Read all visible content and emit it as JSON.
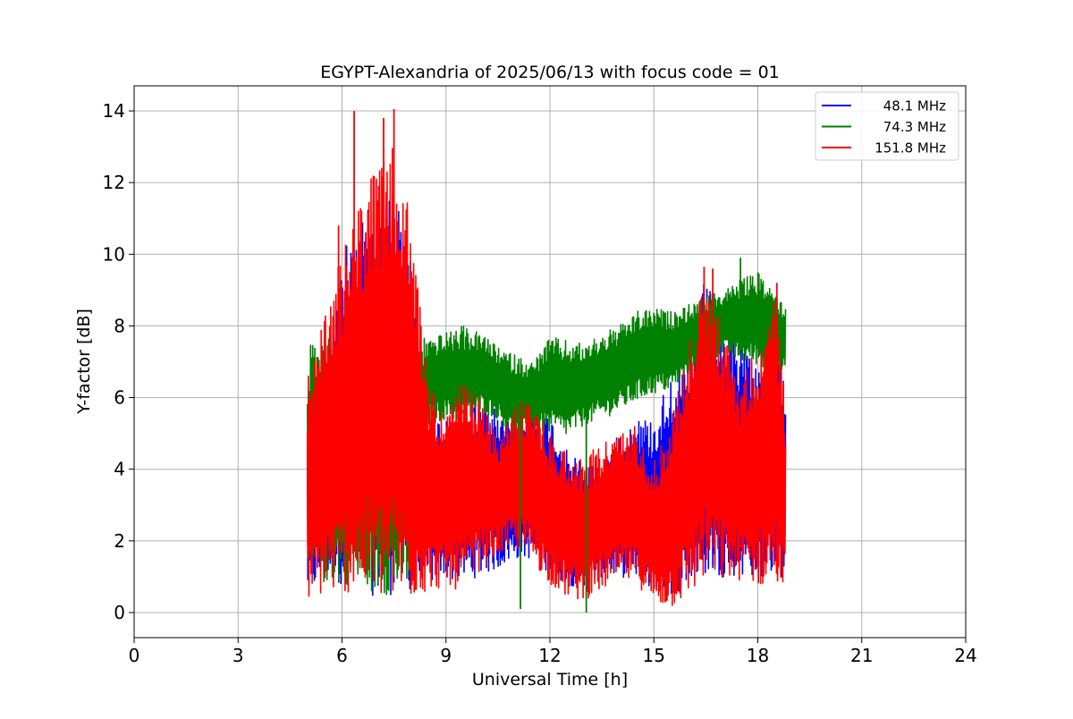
{
  "chart_data": {
    "type": "line",
    "title": "EGYPT-Alexandria of 2025/06/13 with focus code = 01",
    "xlabel": "Universal Time [h]",
    "ylabel": "Y-factor [dB]",
    "xlim": [
      0,
      24
    ],
    "ylim": [
      -0.7,
      14.7
    ],
    "xticks": [
      0,
      3,
      6,
      9,
      12,
      15,
      18,
      21,
      24
    ],
    "yticks": [
      0,
      2,
      4,
      6,
      8,
      10,
      12,
      14
    ],
    "grid": true,
    "legend_position": "top-right",
    "series": [
      {
        "name": "48.1 MHz",
        "color": "#0000ff",
        "x": [
          5.0,
          5.5,
          6.0,
          6.5,
          7.0,
          7.5,
          8.0,
          8.5,
          9.0,
          9.5,
          10.0,
          10.5,
          11.0,
          11.5,
          12.0,
          12.5,
          13.0,
          13.5,
          14.0,
          14.5,
          15.0,
          15.5,
          16.0,
          16.5,
          17.0,
          17.5,
          18.0,
          18.5,
          18.8
        ],
        "high": [
          5.8,
          7.5,
          10.0,
          11.0,
          11.5,
          12.0,
          10.0,
          5.5,
          5.5,
          5.5,
          6.5,
          5.5,
          5.2,
          5.5,
          5.6,
          4.5,
          4.2,
          4.2,
          5.0,
          5.5,
          5.4,
          6.8,
          6.8,
          9.5,
          7.5,
          7.8,
          7.0,
          7.5,
          7.0
        ],
        "low": [
          0.5,
          0.8,
          0.8,
          0.7,
          0.4,
          0.5,
          0.6,
          0.8,
          0.9,
          0.9,
          1.0,
          1.2,
          1.5,
          1.5,
          1.0,
          0.8,
          0.6,
          1.0,
          1.0,
          0.9,
          0.6,
          0.5,
          0.7,
          1.0,
          1.0,
          1.0,
          1.0,
          1.0,
          0.9
        ]
      },
      {
        "name": "74.3 MHz",
        "color": "#008000",
        "x": [
          5.0,
          5.5,
          6.0,
          6.5,
          7.0,
          7.5,
          8.0,
          8.5,
          9.0,
          9.5,
          10.0,
          10.5,
          11.0,
          11.5,
          12.0,
          12.5,
          13.0,
          13.5,
          14.0,
          14.5,
          15.0,
          15.5,
          16.0,
          16.5,
          17.0,
          17.5,
          18.0,
          18.5,
          18.8
        ],
        "high": [
          7.5,
          7.8,
          7.8,
          7.8,
          7.8,
          7.8,
          7.8,
          7.7,
          7.8,
          8.0,
          7.8,
          7.4,
          7.2,
          7.0,
          7.7,
          7.6,
          7.5,
          7.8,
          8.0,
          8.4,
          8.5,
          8.4,
          8.6,
          8.8,
          9.0,
          9.3,
          9.5,
          9.0,
          8.6
        ],
        "low": [
          0.5,
          0.8,
          0.8,
          0.7,
          0.5,
          0.5,
          0.7,
          5.2,
          5.4,
          5.2,
          5.6,
          5.4,
          4.8,
          5.0,
          5.0,
          4.9,
          5.2,
          5.4,
          5.6,
          5.9,
          6.1,
          6.2,
          6.6,
          7.0,
          7.2,
          7.0,
          6.9,
          6.6,
          6.6
        ]
      },
      {
        "name": "151.8 MHz",
        "color": "#ff0000",
        "x": [
          5.0,
          5.5,
          6.0,
          6.5,
          7.0,
          7.5,
          8.0,
          8.5,
          9.0,
          9.5,
          10.0,
          10.5,
          11.0,
          11.5,
          12.0,
          12.5,
          13.0,
          13.5,
          14.0,
          14.5,
          15.0,
          15.5,
          16.0,
          16.5,
          17.0,
          17.5,
          18.0,
          18.5,
          18.8
        ],
        "high": [
          6.5,
          8.5,
          10.0,
          11.5,
          12.5,
          13.0,
          11.0,
          6.5,
          5.5,
          6.5,
          6.0,
          4.8,
          5.8,
          6.0,
          5.0,
          4.5,
          4.3,
          4.8,
          5.0,
          5.3,
          4.2,
          5.5,
          7.5,
          9.5,
          8.0,
          6.5,
          7.5,
          8.8,
          6.0
        ],
        "low": [
          0.3,
          0.5,
          0.5,
          0.6,
          0.3,
          0.2,
          0.3,
          0.6,
          0.7,
          0.6,
          1.2,
          1.6,
          1.8,
          1.4,
          0.8,
          0.4,
          0.3,
          0.6,
          0.9,
          0.8,
          0.2,
          0.1,
          0.4,
          0.9,
          0.8,
          0.9,
          0.7,
          0.8,
          0.3
        ]
      }
    ],
    "spikes": [
      {
        "series": 2,
        "x": 6.35,
        "y": 14.0
      },
      {
        "series": 2,
        "x": 7.2,
        "y": 13.8
      },
      {
        "series": 2,
        "x": 7.5,
        "y": 14.05
      },
      {
        "series": 2,
        "x": 5.9,
        "y": 10.8
      },
      {
        "series": 2,
        "x": 16.45,
        "y": 9.65
      },
      {
        "series": 2,
        "x": 16.7,
        "y": 9.6
      },
      {
        "series": 2,
        "x": 18.55,
        "y": 9.2
      },
      {
        "series": 1,
        "x": 17.5,
        "y": 9.9
      },
      {
        "series": 1,
        "x": 11.15,
        "y": 0.1
      },
      {
        "series": 1,
        "x": 13.05,
        "y": 0.0
      }
    ]
  }
}
